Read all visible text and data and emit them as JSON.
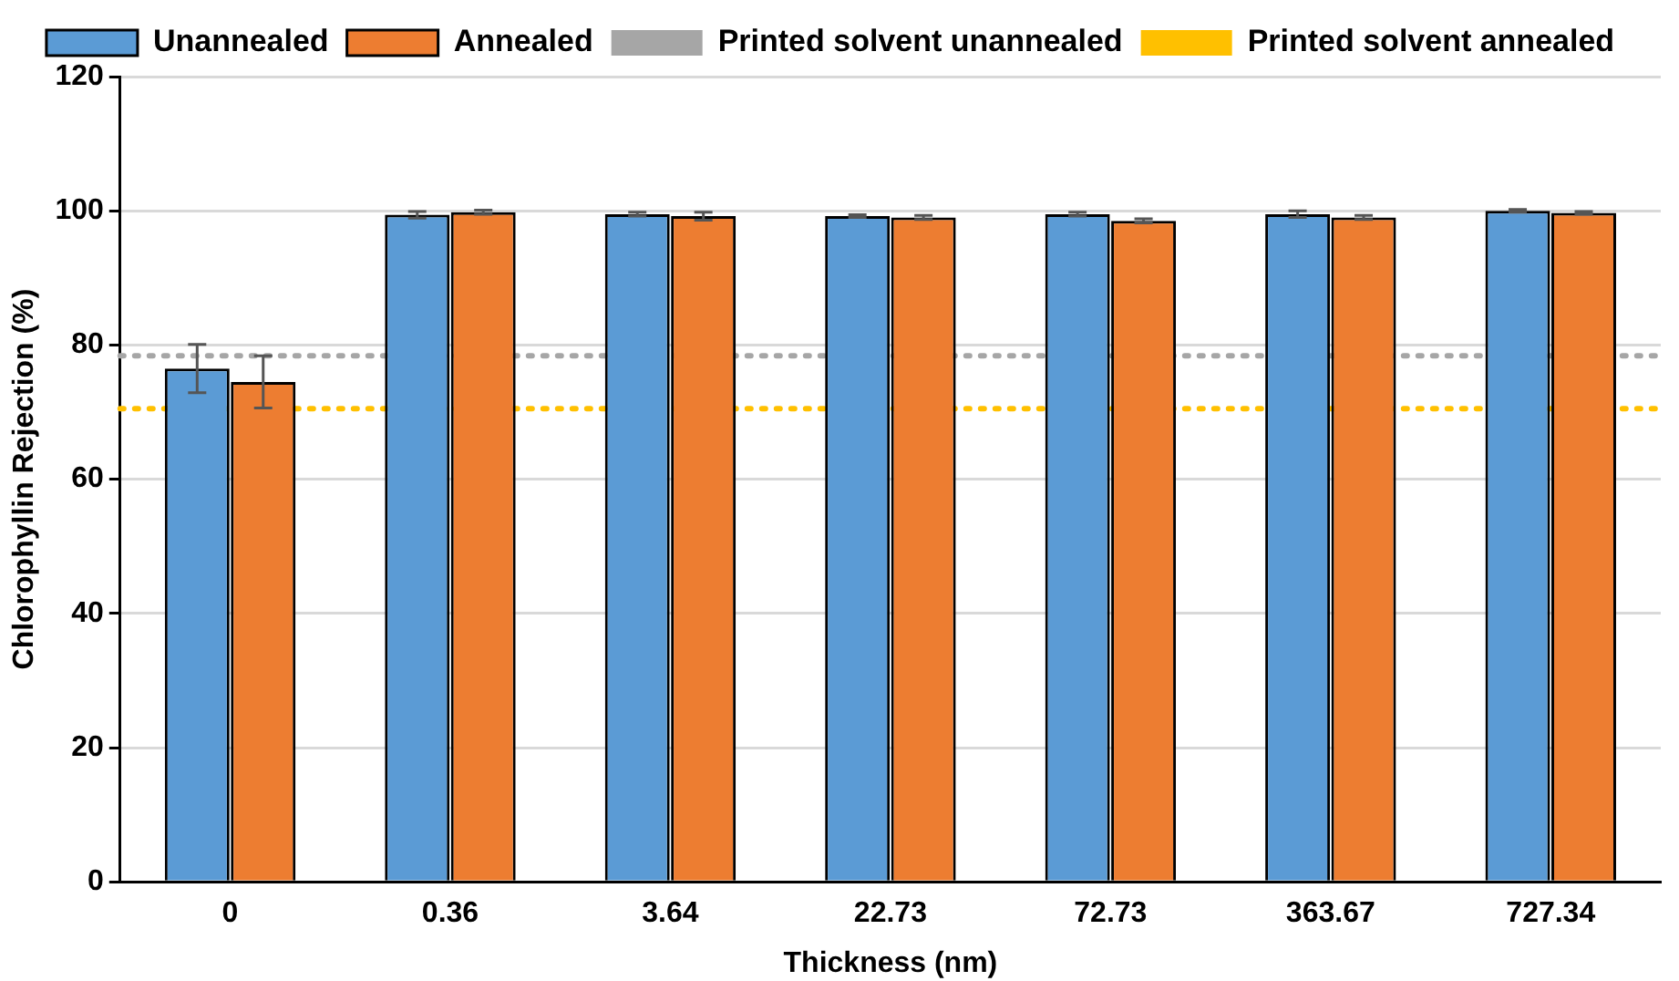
{
  "chart_data": {
    "type": "bar",
    "xlabel": "Thickness (nm)",
    "ylabel": "Chlorophyllin Rejection (%)",
    "categories": [
      "0",
      "0.36",
      "3.64",
      "22.73",
      "72.73",
      "363.67",
      "727.34"
    ],
    "series": [
      {
        "name": "Unannealed",
        "color": "#5b9bd5",
        "values": [
          76.5,
          99.4,
          99.5,
          99.2,
          99.5,
          99.5,
          100
        ],
        "errors": [
          3.6,
          0.5,
          0.3,
          0.2,
          0.3,
          0.5,
          0.2
        ]
      },
      {
        "name": "Annealed",
        "color": "#ed7d31",
        "values": [
          74.5,
          99.8,
          99.2,
          99.0,
          98.5,
          99.0,
          99.7
        ],
        "errors": [
          3.9,
          0.3,
          0.6,
          0.3,
          0.3,
          0.3,
          0.2
        ]
      }
    ],
    "ref_lines": [
      {
        "axis": "y",
        "value": 78.4,
        "label": "Printed solvent unannealed",
        "color": "#a6a6a6",
        "line_style": "dotted"
      },
      {
        "axis": "y",
        "value": 70.5,
        "label": "Printed solvent annealed",
        "color": "#ffc000",
        "line_style": "dotted"
      }
    ],
    "ylim": [
      0,
      120
    ],
    "yticks": [
      0,
      20,
      40,
      60,
      80,
      100,
      120
    ],
    "grid": "y",
    "legend": "top"
  }
}
